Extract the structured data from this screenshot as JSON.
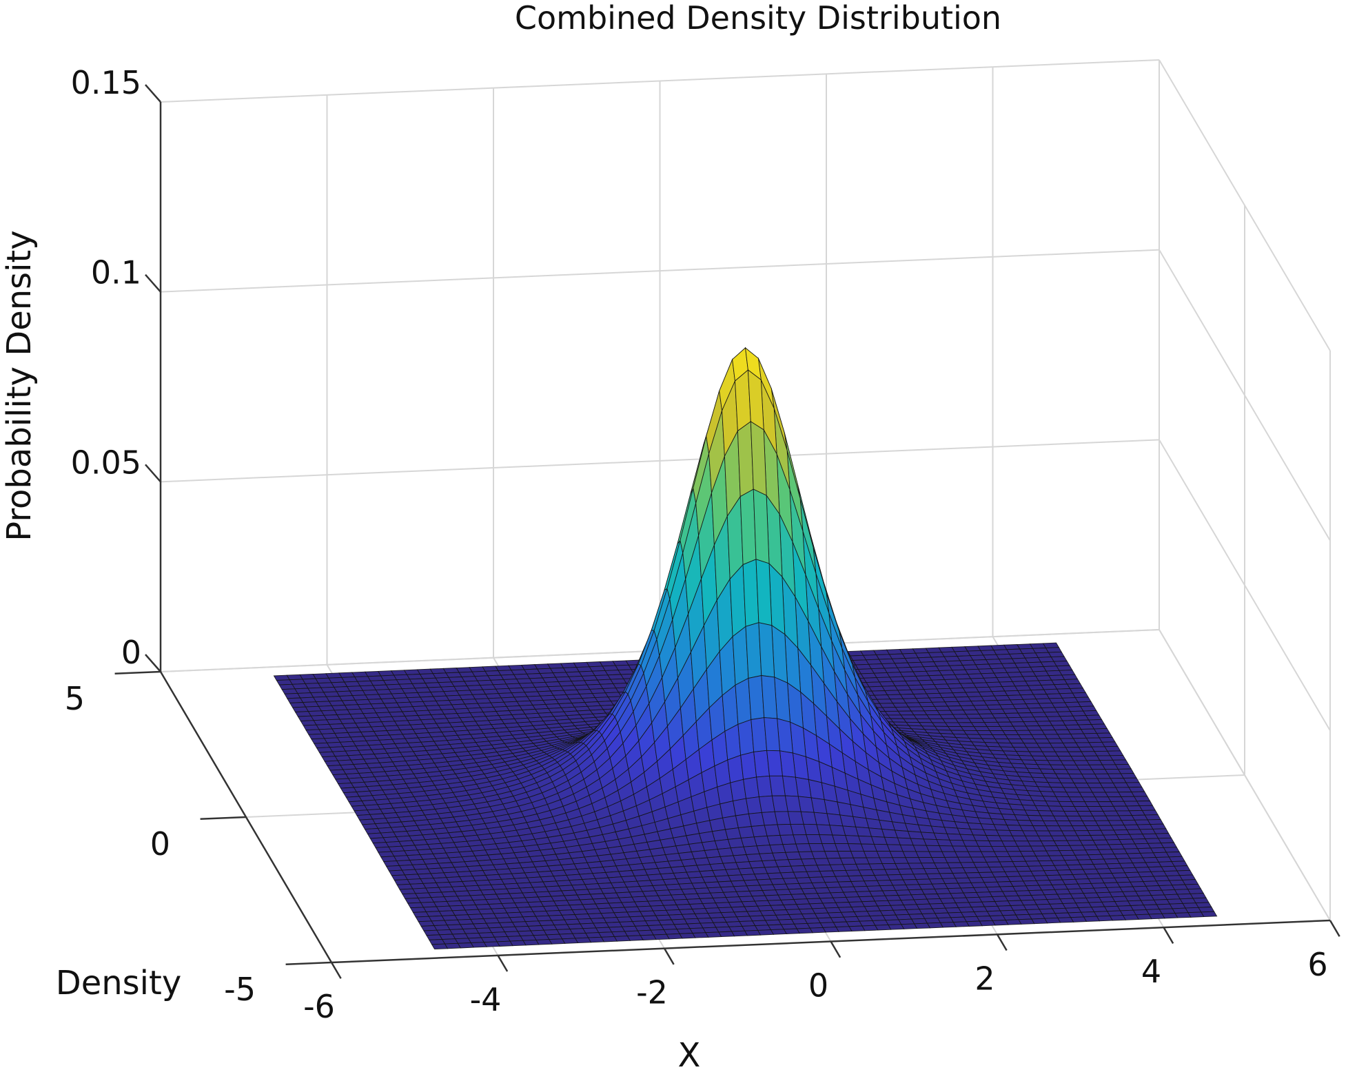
{
  "chart_data": {
    "type": "surface",
    "title": "Combined Density Distribution",
    "xlabel": "X",
    "ylabel": "Density",
    "zlabel": "Probability Density",
    "xlim": [
      -6,
      6
    ],
    "ylim": [
      -5,
      5
    ],
    "zlim": [
      0,
      0.15
    ],
    "xticks": [
      -6,
      -4,
      -2,
      0,
      2,
      4,
      6
    ],
    "yticks": [
      -5,
      0,
      5
    ],
    "zticks": [
      0,
      0.05,
      0.1,
      0.15
    ],
    "xtick_labels": [
      "-6",
      "-4",
      "-2",
      "0",
      "2",
      "4",
      "6"
    ],
    "ytick_labels": [
      "-5",
      "0",
      "5"
    ],
    "ztick_labels": [
      "0",
      "0.05",
      "0.1",
      "0.15"
    ],
    "grid": true,
    "colormap": "parula",
    "colormap_stops": [
      "#352a87",
      "#3a3fd6",
      "#1f83d6",
      "#12b5c0",
      "#4dc780",
      "#c8c02e",
      "#f7e21c"
    ],
    "surface": {
      "x_range": [
        -4.7,
        4.7
      ],
      "y_range": [
        -4.7,
        4.7
      ],
      "grid_points": 61,
      "peak_location": [
        0,
        0
      ],
      "peak_value": 0.118,
      "shape": "bell-shaped bivariate density, heavy-tailed along x"
    }
  }
}
